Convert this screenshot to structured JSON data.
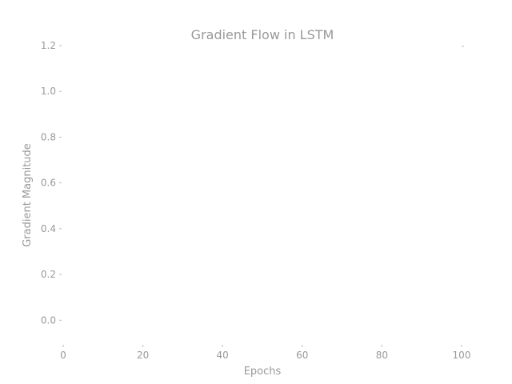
{
  "chart_data": {
    "type": "line",
    "title": "Gradient Flow in LSTM",
    "xlabel": "Epochs",
    "ylabel": "Gradient Magnitude",
    "xlim": [
      0,
      100
    ],
    "ylim": [
      -0.09,
      1.2
    ],
    "x_ticks": [
      "0",
      "20",
      "40",
      "60",
      "80",
      "100"
    ],
    "y_ticks": [
      "0.0",
      "0.2",
      "0.4",
      "0.6",
      "0.8",
      "1.0",
      "1.2"
    ],
    "series": [],
    "grid": false,
    "legend": "none",
    "colors": {
      "text": "#999999",
      "tick": "#bbbbbb",
      "background": "#ffffff"
    }
  }
}
